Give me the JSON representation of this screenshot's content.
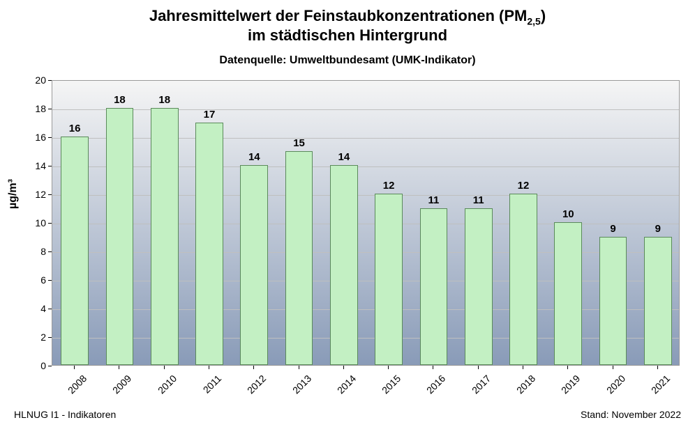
{
  "chart": {
    "type": "bar",
    "title_line1_pre": "Jahresmittelwert der Feinstaubkonzentrationen (PM",
    "title_line1_sub": "2,5",
    "title_line1_post": ")",
    "title_line2": "im städtischen Hintergrund",
    "subtitle": "Datenquelle: Umweltbundesamt (UMK-Indikator)",
    "y_label": "µg/m³",
    "categories": [
      "2008",
      "2009",
      "2010",
      "2011",
      "2012",
      "2013",
      "2014",
      "2015",
      "2016",
      "2017",
      "2018",
      "2019",
      "2020",
      "2021"
    ],
    "values": [
      16,
      18,
      18,
      17,
      14,
      15,
      14,
      12,
      11,
      11,
      12,
      10,
      9,
      9
    ],
    "bar_fill": "#c3f0c3",
    "bar_border": "#5a8a5a",
    "plot_bg_top": "#f5f5f5",
    "plot_bg_bottom": "#899bb8",
    "plot_border": "#9a9a9a",
    "grid_color": "#bfbfbf",
    "ylim": [
      0,
      20
    ],
    "ytick_step": 2,
    "bar_rel_width": 0.62,
    "title_fontsize": 22,
    "subtitle_fontsize": 16,
    "axis_fontsize": 14,
    "barlabel_fontsize": 15
  },
  "footer": {
    "left": "HLNUG I1 - Indikatoren",
    "right": "Stand: November 2022"
  }
}
